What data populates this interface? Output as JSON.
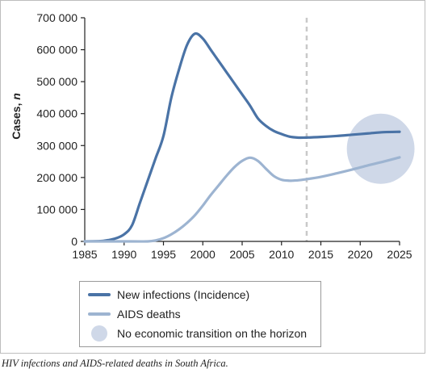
{
  "chart_data": {
    "type": "line",
    "ylabel": "Cases, n",
    "xlim": [
      1985,
      2025
    ],
    "ylim": [
      0,
      700000
    ],
    "x_ticks": [
      1985,
      1990,
      1995,
      2000,
      2005,
      2010,
      2015,
      2020,
      2025
    ],
    "y_ticks": [
      0,
      100000,
      200000,
      300000,
      400000,
      500000,
      600000,
      700000
    ],
    "x_tick_labels": [
      "1985",
      "1990",
      "1995",
      "2000",
      "2005",
      "2010",
      "2015",
      "2020",
      "2025"
    ],
    "y_tick_labels": [
      "0",
      "100 000",
      "200 000",
      "300 000",
      "400 000",
      "500 000",
      "600 000",
      "700 000"
    ],
    "grid": false,
    "reference_line": {
      "x": 2013.2,
      "style": "dashed"
    },
    "series": [
      {
        "name": "New infections (Incidence)",
        "color": "#4a73a6",
        "points": [
          [
            1985,
            0
          ],
          [
            1987,
            1000
          ],
          [
            1988,
            4000
          ],
          [
            1989,
            10000
          ],
          [
            1990,
            22000
          ],
          [
            1991,
            50000
          ],
          [
            1992,
            120000
          ],
          [
            1993,
            190000
          ],
          [
            1994,
            260000
          ],
          [
            1995,
            330000
          ],
          [
            1996,
            450000
          ],
          [
            1997,
            540000
          ],
          [
            1998,
            615000
          ],
          [
            1999,
            650000
          ],
          [
            2000,
            635000
          ],
          [
            2001,
            600000
          ],
          [
            2002,
            565000
          ],
          [
            2003,
            530000
          ],
          [
            2004,
            495000
          ],
          [
            2005,
            460000
          ],
          [
            2006,
            425000
          ],
          [
            2007,
            385000
          ],
          [
            2008,
            362000
          ],
          [
            2009,
            346000
          ],
          [
            2010,
            336000
          ],
          [
            2011,
            328000
          ],
          [
            2012,
            325000
          ],
          [
            2013,
            325000
          ],
          [
            2015,
            327000
          ],
          [
            2017,
            330000
          ],
          [
            2019,
            334000
          ],
          [
            2021,
            338000
          ],
          [
            2023,
            342000
          ],
          [
            2025,
            343000
          ]
        ]
      },
      {
        "name": "AIDS deaths",
        "color": "#9db4d1",
        "points": [
          [
            1985,
            0
          ],
          [
            1991,
            0
          ],
          [
            1993,
            0
          ],
          [
            1994,
            3000
          ],
          [
            1995,
            10000
          ],
          [
            1996,
            22000
          ],
          [
            1997,
            38000
          ],
          [
            1998,
            58000
          ],
          [
            1999,
            82000
          ],
          [
            2000,
            112000
          ],
          [
            2001,
            145000
          ],
          [
            2002,
            175000
          ],
          [
            2003,
            205000
          ],
          [
            2004,
            232000
          ],
          [
            2005,
            252000
          ],
          [
            2006,
            262000
          ],
          [
            2007,
            252000
          ],
          [
            2008,
            228000
          ],
          [
            2009,
            205000
          ],
          [
            2010,
            193000
          ],
          [
            2011,
            190000
          ],
          [
            2012,
            191000
          ],
          [
            2013,
            194000
          ],
          [
            2015,
            202000
          ],
          [
            2017,
            213000
          ],
          [
            2019,
            225000
          ],
          [
            2021,
            238000
          ],
          [
            2023,
            250000
          ],
          [
            2025,
            263000
          ]
        ]
      }
    ],
    "highlight": {
      "name": "No economic transition on the horizon",
      "color": "#cfd8e8",
      "center": [
        2022.6,
        290000
      ],
      "x_radius": 4.3,
      "y_radius": 110000
    }
  },
  "legend": {
    "items": [
      {
        "label": "New infections (Incidence)",
        "color": "#4a73a6",
        "kind": "line"
      },
      {
        "label": "AIDS deaths",
        "color": "#9db4d1",
        "kind": "line"
      },
      {
        "label": "No economic transition on the horizon",
        "color": "#cfd8e8",
        "kind": "circle"
      }
    ]
  },
  "caption": "HIV infections and AIDS-related deaths in South Africa."
}
